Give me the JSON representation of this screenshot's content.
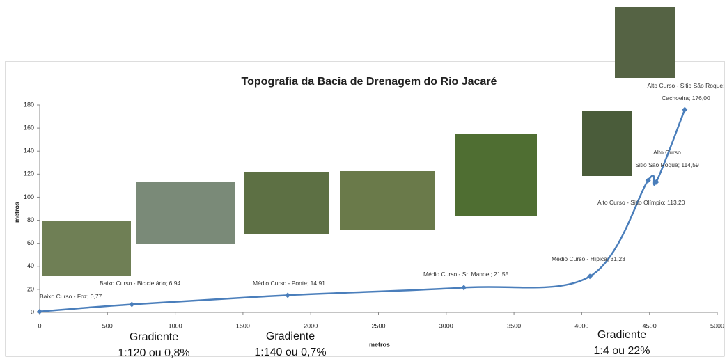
{
  "chart_data": {
    "type": "line",
    "title": "Topografia da Bacia de Drenagem do Rio Jacaré",
    "x_label": "metros",
    "y_label": "metros",
    "x": [
      0,
      680,
      1830,
      3130,
      4060,
      4490,
      4550,
      4760
    ],
    "values": [
      0.77,
      6.94,
      14.91,
      21.55,
      31.23,
      114.59,
      113.2,
      176.0
    ],
    "value_labels": [
      "Baixo Curso - Foz; 0,77",
      "Baixo Curso - Bicicletário; 6,94",
      "Médio Curso - Ponte; 14,91",
      "Médio Curso - Sr. Manoel; 21,55",
      "Médio Curso - Hípica; 31,23",
      "Alto Curso\nSitio São Roque; 114,59",
      "Alto Curso - Sitio Olímpio; 113,20",
      "Alto Curso - Sitio São Roque:\nCachoeira; 176,00"
    ],
    "color": "#4a7ebb",
    "xlim": [
      0,
      5000
    ],
    "xticks": [
      0,
      500,
      1000,
      1500,
      2000,
      2500,
      3000,
      3500,
      4000,
      4500,
      5000
    ],
    "ylim": [
      0,
      180
    ],
    "yticks": [
      0,
      20,
      40,
      60,
      80,
      100,
      120,
      140,
      160,
      180
    ],
    "annotations": [
      "Gradiente\n1:120 ou 0,8%",
      "Gradiente\n1:140 ou 0,7%",
      "Gradiente\n1:4 ou 22%"
    ]
  }
}
